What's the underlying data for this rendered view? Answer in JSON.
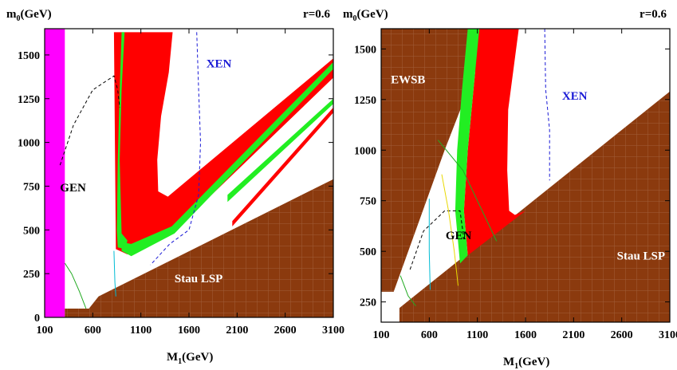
{
  "chart_data": [
    {
      "type": "region",
      "panel": "left",
      "ylabel_main": "m",
      "ylabel_sub": "0",
      "ylabel_unit": "(GeV)",
      "xlabel_main": "M",
      "xlabel_sub": "1",
      "xlabel_unit": "(GeV)",
      "param_label": "r=0.6",
      "xlim": [
        100,
        3100
      ],
      "ylim": [
        0,
        1650
      ],
      "xticks": [
        "100",
        "600",
        "1100",
        "1600",
        "2100",
        "2600",
        "3100"
      ],
      "yticks": [
        "0",
        "250",
        "500",
        "750",
        "1000",
        "1250",
        "1500"
      ],
      "annotations": [
        {
          "text": "XEN",
          "x": 1780,
          "y": 1430,
          "color": "#1a1ad6"
        },
        {
          "text": "GEN",
          "x": 260,
          "y": 720,
          "color": "#000000"
        },
        {
          "text": "Stau LSP",
          "x": 1450,
          "y": 200,
          "color": "#ffffff"
        }
      ],
      "regions": [
        {
          "name": "magenta",
          "color": "#ff00ff",
          "polygon": [
            [
              100,
              1650
            ],
            [
              310,
              1650
            ],
            [
              310,
              0
            ],
            [
              100,
              0
            ]
          ]
        },
        {
          "name": "stau-lsp",
          "color": "#8b3a0e",
          "polygon": [
            [
              310,
              50
            ],
            [
              560,
              50
            ],
            [
              660,
              120
            ],
            [
              3100,
              790
            ],
            [
              3100,
              0
            ],
            [
              310,
              0
            ]
          ]
        },
        {
          "name": "red-band-main",
          "color": "#ff0000",
          "polygon": [
            [
              820,
              1630
            ],
            [
              1430,
              1630
            ],
            [
              1390,
              1400
            ],
            [
              1310,
              1150
            ],
            [
              1270,
              900
            ],
            [
              1280,
              720
            ],
            [
              1380,
              690
            ],
            [
              3100,
              1480
            ],
            [
              3100,
              1370
            ],
            [
              1400,
              470
            ],
            [
              960,
              360
            ],
            [
              840,
              390
            ]
          ]
        },
        {
          "name": "green-band-left",
          "color": "#22ee22",
          "polygon": [
            [
              830,
              1630
            ],
            [
              900,
              1630
            ],
            [
              880,
              1300
            ],
            [
              860,
              900
            ],
            [
              850,
              500
            ],
            [
              860,
              400
            ],
            [
              940,
              390
            ],
            [
              960,
              440
            ],
            [
              900,
              480
            ],
            [
              880,
              900
            ],
            [
              900,
              1300
            ],
            [
              930,
              1630
            ]
          ]
        },
        {
          "name": "green-band-lower",
          "color": "#22ee22",
          "polygon": [
            [
              900,
              380
            ],
            [
              1000,
              350
            ],
            [
              1450,
              480
            ],
            [
              3100,
              1420
            ],
            [
              3100,
              1460
            ],
            [
              1420,
              520
            ],
            [
              1000,
              420
            ],
            [
              900,
              430
            ]
          ]
        },
        {
          "name": "green-strip-mid",
          "color": "#22ee22",
          "polygon": [
            [
              2000,
              700
            ],
            [
              3100,
              1250
            ],
            [
              3100,
              1220
            ],
            [
              2000,
              660
            ]
          ]
        },
        {
          "name": "red-strip-low",
          "color": "#ff0000",
          "polygon": [
            [
              2050,
              550
            ],
            [
              3100,
              1200
            ],
            [
              3100,
              1170
            ],
            [
              2050,
              520
            ]
          ]
        }
      ],
      "curves": [
        {
          "name": "GEN",
          "color": "#000000",
          "dashed": true,
          "points": [
            [
              260,
              870
            ],
            [
              400,
              1100
            ],
            [
              600,
              1300
            ],
            [
              820,
              1380
            ],
            [
              860,
              1300
            ],
            [
              880,
              1200
            ]
          ]
        },
        {
          "name": "XEN",
          "color": "#1a1ad6",
          "dashed": true,
          "points": [
            [
              1680,
              1630
            ],
            [
              1700,
              1300
            ],
            [
              1720,
              1000
            ],
            [
              1700,
              700
            ],
            [
              1600,
              500
            ],
            [
              1400,
              420
            ],
            [
              1200,
              300
            ]
          ]
        },
        {
          "name": "green-thin",
          "color": "#22aa22",
          "dashed": false,
          "points": [
            [
              310,
              310
            ],
            [
              380,
              250
            ],
            [
              460,
              150
            ],
            [
              530,
              50
            ]
          ]
        },
        {
          "name": "cyan-thin",
          "color": "#00bcd4",
          "dashed": false,
          "points": [
            [
              820,
              380
            ],
            [
              830,
              200
            ],
            [
              840,
              120
            ]
          ]
        }
      ]
    },
    {
      "type": "region",
      "panel": "right",
      "ylabel_main": "m",
      "ylabel_sub": "0",
      "ylabel_unit": "(GeV)",
      "xlabel_main": "M",
      "xlabel_sub": "1",
      "xlabel_unit": "(GeV)",
      "param_label": "r=0.6",
      "xlim": [
        100,
        3100
      ],
      "ylim": [
        150,
        1600
      ],
      "xticks": [
        "100",
        "600",
        "1100",
        "1600",
        "2100",
        "2600",
        "3100"
      ],
      "yticks": [
        "250",
        "500",
        "750",
        "1000",
        "1250",
        "1500"
      ],
      "annotations": [
        {
          "text": "EWSB",
          "x": 200,
          "y": 1330,
          "color": "#ffffff"
        },
        {
          "text": "XEN",
          "x": 1980,
          "y": 1250,
          "color": "#1a1ad6"
        },
        {
          "text": "GEN",
          "x": 770,
          "y": 560,
          "color": "#000000"
        },
        {
          "text": "Stau LSP",
          "x": 2550,
          "y": 460,
          "color": "#ffffff"
        }
      ],
      "regions": [
        {
          "name": "ewsb",
          "color": "#8b3a0e",
          "polygon": [
            [
              100,
              1600
            ],
            [
              1250,
              1600
            ],
            [
              760,
              1000
            ],
            [
              230,
              300
            ],
            [
              100,
              300
            ]
          ]
        },
        {
          "name": "stau-lsp",
          "color": "#8b3a0e",
          "polygon": [
            [
              290,
              220
            ],
            [
              3100,
              1290
            ],
            [
              3100,
              150
            ],
            [
              290,
              150
            ]
          ]
        },
        {
          "name": "red-band",
          "color": "#ff0000",
          "polygon": [
            [
              1120,
              1600
            ],
            [
              1530,
              1600
            ],
            [
              1420,
              1200
            ],
            [
              1410,
              900
            ],
            [
              1430,
              700
            ],
            [
              1490,
              680
            ],
            [
              1600,
              700
            ],
            [
              1000,
              480
            ],
            [
              960,
              700
            ],
            [
              1000,
              1000
            ],
            [
              1060,
              1300
            ]
          ]
        },
        {
          "name": "green-band",
          "color": "#22ee22",
          "polygon": [
            [
              1000,
              1600
            ],
            [
              1120,
              1600
            ],
            [
              1060,
              1300
            ],
            [
              1000,
              1000
            ],
            [
              960,
              700
            ],
            [
              1000,
              480
            ],
            [
              920,
              440
            ],
            [
              870,
              700
            ],
            [
              890,
              1000
            ],
            [
              940,
              1300
            ]
          ]
        }
      ],
      "curves": [
        {
          "name": "GEN",
          "color": "#000000",
          "dashed": true,
          "points": [
            [
              400,
              410
            ],
            [
              540,
              600
            ],
            [
              760,
              700
            ],
            [
              920,
              700
            ],
            [
              960,
              560
            ]
          ]
        },
        {
          "name": "XEN",
          "color": "#1a1ad6",
          "dashed": true,
          "points": [
            [
              1800,
              1600
            ],
            [
              1810,
              1300
            ],
            [
              1850,
              1100
            ],
            [
              1850,
              850
            ]
          ]
        },
        {
          "name": "green-thin",
          "color": "#22aa22",
          "dashed": false,
          "points": [
            [
              690,
              1050
            ],
            [
              950,
              900
            ],
            [
              1150,
              700
            ],
            [
              1300,
              550
            ]
          ]
        },
        {
          "name": "yellow",
          "color": "#e8d800",
          "dashed": false,
          "points": [
            [
              730,
              880
            ],
            [
              800,
              700
            ],
            [
              860,
              500
            ],
            [
              900,
              330
            ]
          ]
        },
        {
          "name": "cyan",
          "color": "#00bcd4",
          "dashed": false,
          "points": [
            [
              600,
              760
            ],
            [
              600,
              500
            ],
            [
              610,
              310
            ]
          ]
        },
        {
          "name": "green-small",
          "color": "#22aa22",
          "dashed": false,
          "points": [
            [
              300,
              380
            ],
            [
              380,
              280
            ],
            [
              460,
              230
            ]
          ]
        }
      ]
    }
  ]
}
